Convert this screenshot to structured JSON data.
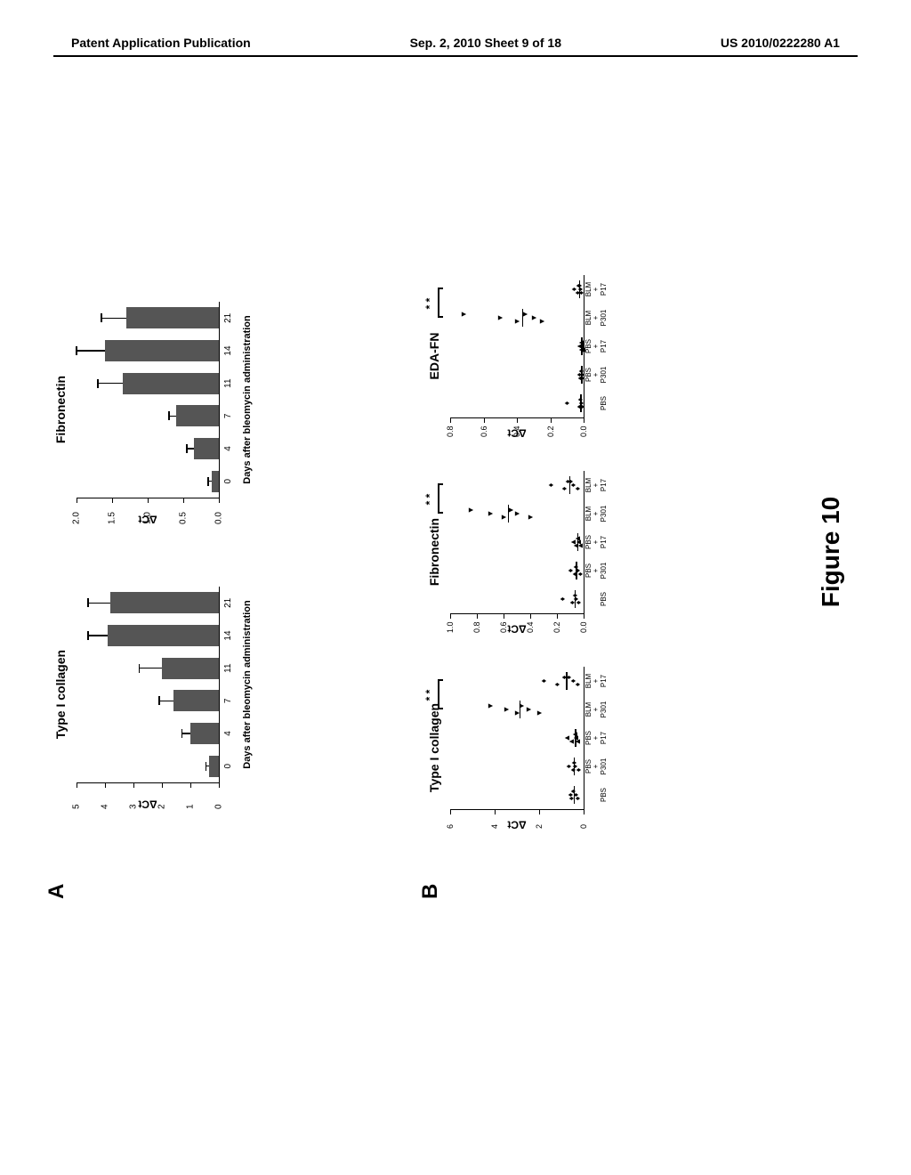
{
  "header": {
    "left": "Patent Application Publication",
    "center": "Sep. 2, 2010  Sheet 9 of 18",
    "right": "US 2010/0222280 A1"
  },
  "figure_label": "Figure 10",
  "panel_a_label": "A",
  "panel_b_label": "B",
  "bar_color": "#555555",
  "text_color": "#000000",
  "bg_color": "#ffffff",
  "panel_a": {
    "charts": [
      {
        "title": "Type I collagen",
        "ylabel": "ΔCt",
        "xlabel": "Days after bleomycin administration",
        "ymax": 5,
        "yticks": [
          0,
          1,
          2,
          3,
          4,
          5
        ],
        "categories": [
          "0",
          "4",
          "7",
          "11",
          "14",
          "21"
        ],
        "values": [
          0.35,
          1.0,
          1.6,
          2.0,
          3.9,
          3.8
        ],
        "errors": [
          0.1,
          0.3,
          0.5,
          0.8,
          0.7,
          0.8
        ]
      },
      {
        "title": "Fibronectin",
        "ylabel": "ΔCt",
        "xlabel": "Days after bleomycin administration",
        "ymax": 2.0,
        "yticks": [
          0.0,
          0.5,
          1.0,
          1.5,
          2.0
        ],
        "categories": [
          "0",
          "4",
          "7",
          "11",
          "14",
          "21"
        ],
        "values": [
          0.1,
          0.35,
          0.6,
          1.35,
          1.6,
          1.3
        ],
        "errors": [
          0.05,
          0.1,
          0.1,
          0.35,
          0.4,
          0.35
        ]
      }
    ]
  },
  "panel_b": {
    "charts": [
      {
        "title": "Type I collagen",
        "ylabel": "ΔCt",
        "ymax": 6,
        "yticks": [
          0,
          2,
          4,
          6
        ],
        "groups": [
          "PBS",
          "PBS + P301",
          "PBS + P17",
          "BLM + P301",
          "BLM + P17"
        ],
        "group_labels": [
          "PBS",
          "PBS<br>+<br>P301",
          "PBS<br>+<br>P17",
          "BLM<br>+<br>P301",
          "BLM<br>+<br>P17"
        ],
        "points": [
          [
            0.3,
            0.35,
            0.5,
            0.55,
            0.6
          ],
          [
            0.25,
            0.4,
            0.45,
            0.5,
            0.7
          ],
          [
            0.3,
            0.35,
            0.4,
            0.55,
            0.75
          ],
          [
            2.0,
            2.5,
            2.8,
            3.0,
            3.5,
            4.2
          ],
          [
            0.3,
            0.5,
            0.7,
            1.2,
            1.8,
            0.9
          ]
        ],
        "medians": [
          0.45,
          0.45,
          0.4,
          2.9,
          0.8
        ],
        "markers": [
          "♦",
          "♦",
          "▲",
          "▼",
          "♦"
        ],
        "sig_from": 3,
        "sig_to": 4,
        "sig_label": "* *"
      },
      {
        "title": "Fibronectin",
        "ylabel": "ΔCt",
        "ymax": 1.0,
        "yticks": [
          0.0,
          0.2,
          0.4,
          0.6,
          0.8,
          1.0
        ],
        "groups": [
          "PBS",
          "PBS + P301",
          "PBS + P17",
          "BLM + P301",
          "BLM + P17"
        ],
        "group_labels": [
          "PBS",
          "PBS<br>+<br>P301",
          "PBS<br>+<br>P17",
          "BLM<br>+<br>P301",
          "BLM<br>+<br>P17"
        ],
        "points": [
          [
            0.04,
            0.06,
            0.07,
            0.09,
            0.16
          ],
          [
            0.03,
            0.05,
            0.06,
            0.07,
            0.1
          ],
          [
            0.03,
            0.04,
            0.05,
            0.06,
            0.08
          ],
          [
            0.4,
            0.5,
            0.55,
            0.6,
            0.7,
            0.85
          ],
          [
            0.05,
            0.08,
            0.1,
            0.15,
            0.25,
            0.12
          ]
        ],
        "medians": [
          0.07,
          0.06,
          0.05,
          0.57,
          0.11
        ],
        "markers": [
          "♦",
          "♦",
          "▲",
          "▼",
          "♦"
        ],
        "sig_from": 3,
        "sig_to": 4,
        "sig_label": "* *"
      },
      {
        "title": "EDA-FN",
        "ylabel": "ΔCt",
        "ymax": 0.8,
        "yticks": [
          0.0,
          0.2,
          0.4,
          0.6,
          0.8
        ],
        "groups": [
          "PBS",
          "PBS + P301",
          "PBS + P17",
          "BLM + P301",
          "BLM + P17"
        ],
        "group_labels": [
          "PBS",
          "PBS<br>+<br>P301",
          "PBS<br>+<br>P17",
          "BLM<br>+<br>P301",
          "BLM<br>+<br>P17"
        ],
        "points": [
          [
            0.01,
            0.015,
            0.02,
            0.025,
            0.1
          ],
          [
            0.01,
            0.013,
            0.015,
            0.02,
            0.025
          ],
          [
            0.008,
            0.012,
            0.015,
            0.018,
            0.025
          ],
          [
            0.25,
            0.3,
            0.35,
            0.4,
            0.5,
            0.72
          ],
          [
            0.015,
            0.02,
            0.03,
            0.04,
            0.06,
            0.025
          ]
        ],
        "medians": [
          0.02,
          0.015,
          0.015,
          0.37,
          0.027
        ],
        "markers": [
          "♦",
          "♦",
          "▲",
          "▼",
          "♦"
        ],
        "sig_from": 3,
        "sig_to": 4,
        "sig_label": "* *"
      }
    ]
  }
}
